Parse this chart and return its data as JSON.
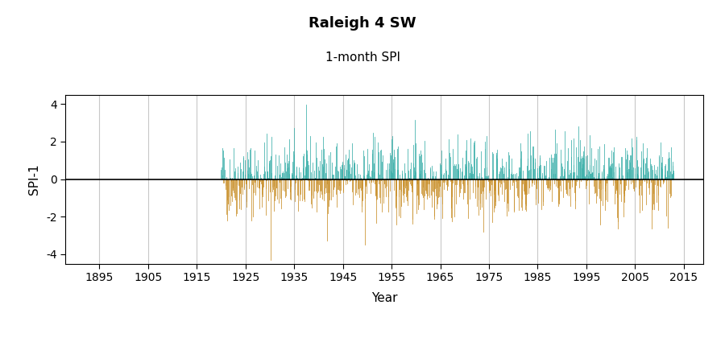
{
  "title": "Raleigh 4 SW",
  "subtitle": "1-month SPI",
  "ylabel": "SPI-1",
  "xlabel": "Year",
  "ylim": [
    -4.5,
    4.5
  ],
  "yticks": [
    -4,
    -2,
    0,
    2,
    4
  ],
  "xticks": [
    1895,
    1905,
    1915,
    1925,
    1935,
    1945,
    1955,
    1965,
    1975,
    1985,
    1995,
    2005,
    2015
  ],
  "xlim": [
    1888,
    2019
  ],
  "data_start_year": 1920,
  "data_end_year": 2013,
  "color_positive": "#3aafa9",
  "color_negative": "#c9902a",
  "background_color": "#ffffff",
  "grid_color": "#c8c8c8",
  "title_fontsize": 13,
  "subtitle_fontsize": 11,
  "axis_label_fontsize": 11,
  "tick_fontsize": 10,
  "seed": 42
}
